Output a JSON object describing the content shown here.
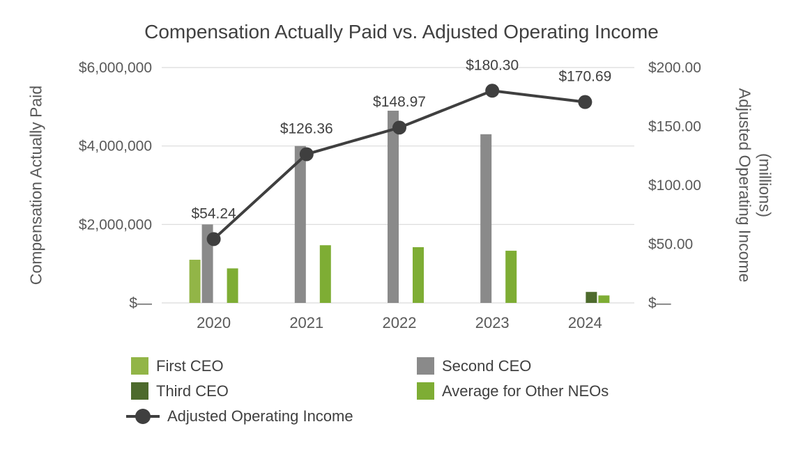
{
  "title": "Compensation Actually Paid vs. Adjusted Operating Income",
  "chart_data": {
    "type": "bar",
    "subtype": "combo-bar-line-dual-axis",
    "categories": [
      "2020",
      "2021",
      "2022",
      "2023",
      "2024"
    ],
    "series": [
      {
        "name": "First CEO",
        "type": "bar",
        "axis": "left",
        "color": "#92b547",
        "values": [
          1100000,
          0,
          0,
          0,
          0
        ]
      },
      {
        "name": "Second CEO",
        "type": "bar",
        "axis": "left",
        "color": "#8a8a8a",
        "values": [
          2000000,
          4000000,
          4900000,
          4300000,
          0
        ]
      },
      {
        "name": "Third CEO",
        "type": "bar",
        "axis": "left",
        "color": "#4d6a2c",
        "values": [
          0,
          0,
          0,
          0,
          280000
        ]
      },
      {
        "name": "Average for Other NEOs",
        "type": "bar",
        "axis": "left",
        "color": "#7ead34",
        "values": [
          880000,
          1470000,
          1420000,
          1330000,
          190000
        ]
      },
      {
        "name": "Adjusted Operating Income",
        "type": "line",
        "axis": "right",
        "color": "#3f3f3f",
        "values": [
          54.24,
          126.36,
          148.97,
          180.3,
          170.69
        ],
        "point_labels": [
          "$54.24",
          "$126.36",
          "$148.97",
          "$180.30",
          "$170.69"
        ]
      }
    ],
    "left_axis": {
      "title": "Compensation Actually Paid",
      "min": 0,
      "max": 6000000,
      "ticks": [
        "$—",
        "$2,000,000",
        "$4,000,000",
        "$6,000,000"
      ]
    },
    "right_axis": {
      "title": "Adjusted Operating Income",
      "title_line2": "(millions)",
      "min": 0,
      "max": 200,
      "ticks": [
        "$—",
        "$50.00",
        "$100.00",
        "$150.00",
        "$200.00"
      ]
    },
    "grid": "horizontal",
    "legend_position": "bottom"
  },
  "colors": {
    "background": "#ffffff",
    "grid": "#d9d9d9",
    "title_text": "#404040",
    "axis_text": "#595959",
    "label_text": "#404040"
  }
}
